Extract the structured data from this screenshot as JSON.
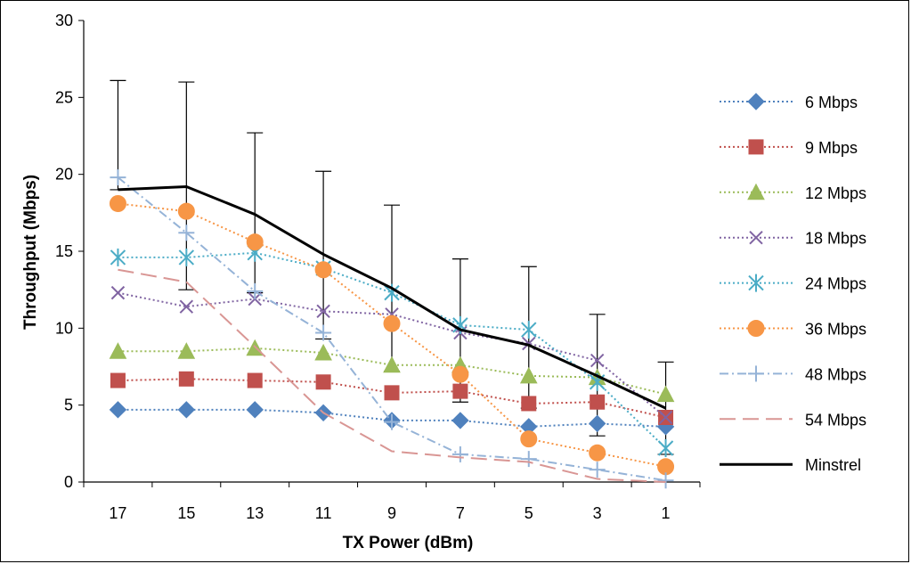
{
  "chart_data": {
    "type": "line",
    "title": "",
    "xlabel": "TX Power (dBm)",
    "ylabel": "Throughput (Mbps)",
    "categories": [
      "17",
      "15",
      "13",
      "11",
      "9",
      "7",
      "5",
      "3",
      "1"
    ],
    "ylim": [
      0,
      30
    ],
    "yticks": [
      "0",
      "5",
      "10",
      "15",
      "20",
      "25",
      "30"
    ],
    "grid": false,
    "legend_position": "right",
    "series": [
      {
        "name": "6 Mbps",
        "values": [
          4.7,
          4.7,
          4.7,
          4.5,
          4.0,
          4.0,
          3.6,
          3.8,
          3.6
        ],
        "color": "#4F81BD",
        "marker": "diamond",
        "dash": "dotted"
      },
      {
        "name": "9 Mbps",
        "values": [
          6.6,
          6.7,
          6.6,
          6.5,
          5.8,
          5.9,
          5.1,
          5.2,
          4.2
        ],
        "color": "#C0504D",
        "marker": "square",
        "dash": "dotted"
      },
      {
        "name": "12 Mbps",
        "values": [
          8.5,
          8.5,
          8.7,
          8.4,
          7.6,
          7.6,
          6.9,
          6.8,
          5.7
        ],
        "color": "#9BBB59",
        "marker": "triangle",
        "dash": "dotted"
      },
      {
        "name": "18 Mbps",
        "values": [
          12.3,
          11.4,
          11.9,
          11.1,
          10.9,
          9.7,
          9.0,
          7.9,
          4.2
        ],
        "color": "#8064A2",
        "marker": "x",
        "dash": "dotted"
      },
      {
        "name": "24 Mbps",
        "values": [
          14.6,
          14.6,
          14.9,
          13.9,
          12.3,
          10.2,
          9.9,
          6.5,
          2.2
        ],
        "color": "#4BACC6",
        "marker": "star",
        "dash": "dotted"
      },
      {
        "name": "36 Mbps",
        "values": [
          18.1,
          17.6,
          15.6,
          13.8,
          10.3,
          7.0,
          2.8,
          1.9,
          1.0
        ],
        "color": "#F79646",
        "marker": "circle",
        "dash": "dotted"
      },
      {
        "name": "48 Mbps",
        "values": [
          19.8,
          16.2,
          12.4,
          9.7,
          3.9,
          1.8,
          1.5,
          0.8,
          0.1
        ],
        "color": "#95B3D7",
        "marker": "plus",
        "dash": "dashdot"
      },
      {
        "name": "54 Mbps",
        "values": [
          13.8,
          13.0,
          8.8,
          4.5,
          2.0,
          1.6,
          1.3,
          0.2,
          0.0
        ],
        "color": "#D99694",
        "marker": "none",
        "dash": "longdash"
      },
      {
        "name": "Minstrel",
        "values": [
          19.0,
          19.2,
          17.4,
          14.8,
          12.6,
          9.9,
          8.9,
          6.9,
          4.8
        ],
        "color": "#000000",
        "marker": "none",
        "dash": "solid",
        "error_upper": [
          26.1,
          26.0,
          22.7,
          20.2,
          18.0,
          14.5,
          14.0,
          10.9,
          7.8
        ],
        "error_lower": [
          19.0,
          12.5,
          12.3,
          9.3,
          7.2,
          5.2,
          4.8,
          3.0,
          1.8
        ]
      }
    ]
  }
}
